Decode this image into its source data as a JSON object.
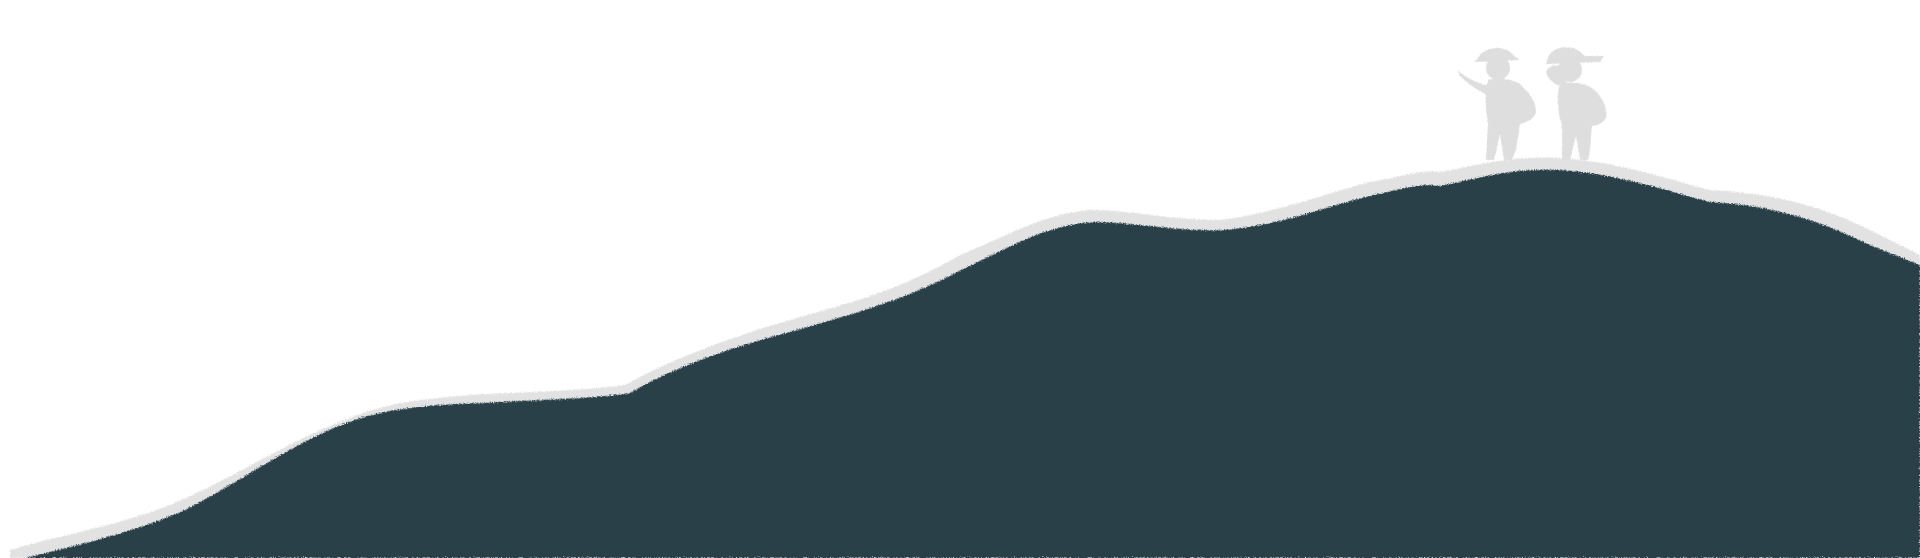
{
  "illustration": {
    "hill_color": "#2b414a",
    "edge_color": "#e2e2e2",
    "figure_color": "#dedede",
    "background_color": "#ffffff",
    "figures": [
      "hiker-pointing",
      "hiker-shading-eyes"
    ]
  }
}
